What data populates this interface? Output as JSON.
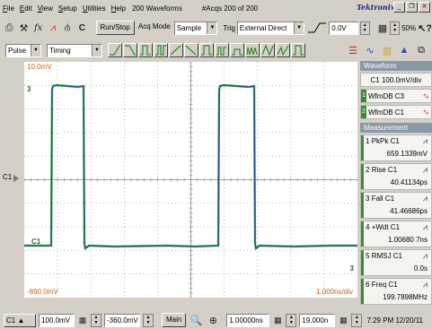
{
  "menu": {
    "items": [
      "File",
      "Edit",
      "View",
      "Setup",
      "Utilities",
      "Help"
    ],
    "waveform_count": "200 Waveforms",
    "acqs": "#Acqs  200 of 200",
    "brand": "Tektronix"
  },
  "toolbar": {
    "channel": "C",
    "run_stop": "Run/Stop",
    "acq_mode_label": "Acq Mode",
    "acq_mode_value": "Sample",
    "trig_label": "Trig",
    "trig_value": "External Direct",
    "trig_level": "0.0V",
    "zoom": "50%"
  },
  "toolbar2": {
    "pulse": "Pulse",
    "timing": "Timing"
  },
  "scope": {
    "top_scale": "10.0mV",
    "bottom_scale": "-890.0mV",
    "time_per_div": "1.000ns/div",
    "ref_label": "C1",
    "wave_marker": "C1",
    "marker_3": "3",
    "side_label": "C1"
  },
  "waveform_panel": {
    "title": "Waveform",
    "header": "C1  100.0mV/div",
    "items": [
      {
        "num": "1",
        "label": "WfmDB C3"
      },
      {
        "num": "2",
        "label": "WfmDB C1"
      }
    ]
  },
  "measurement_panel": {
    "title": "Measurement",
    "items": [
      {
        "num": "1",
        "name": "PkPk  C1",
        "value": "659.1339mV"
      },
      {
        "num": "2",
        "name": "Rise   C1",
        "value": "40.41134ps"
      },
      {
        "num": "3",
        "name": "Fall    C1",
        "value": "41.46686ps"
      },
      {
        "num": "4",
        "name": "+Wdt  C1",
        "value": "1.00680 7ns"
      },
      {
        "num": "5",
        "name": "RMSJ  C1",
        "value": "0.0s"
      },
      {
        "num": "6",
        "name": "Freq   C1",
        "value": "199.7898MHz"
      }
    ]
  },
  "bottom": {
    "channel": "C1",
    "vscale": "100.0mV",
    "offset": "-360.0mV",
    "main": "Main",
    "timebase": "1.00000ns",
    "position": "19.000n",
    "clock": "7:29 PM 12/20/11"
  },
  "colors": {
    "trace_blue": "#2b3fa0",
    "trace_green": "#3aaa3a",
    "grid": "#8a8a8a"
  }
}
